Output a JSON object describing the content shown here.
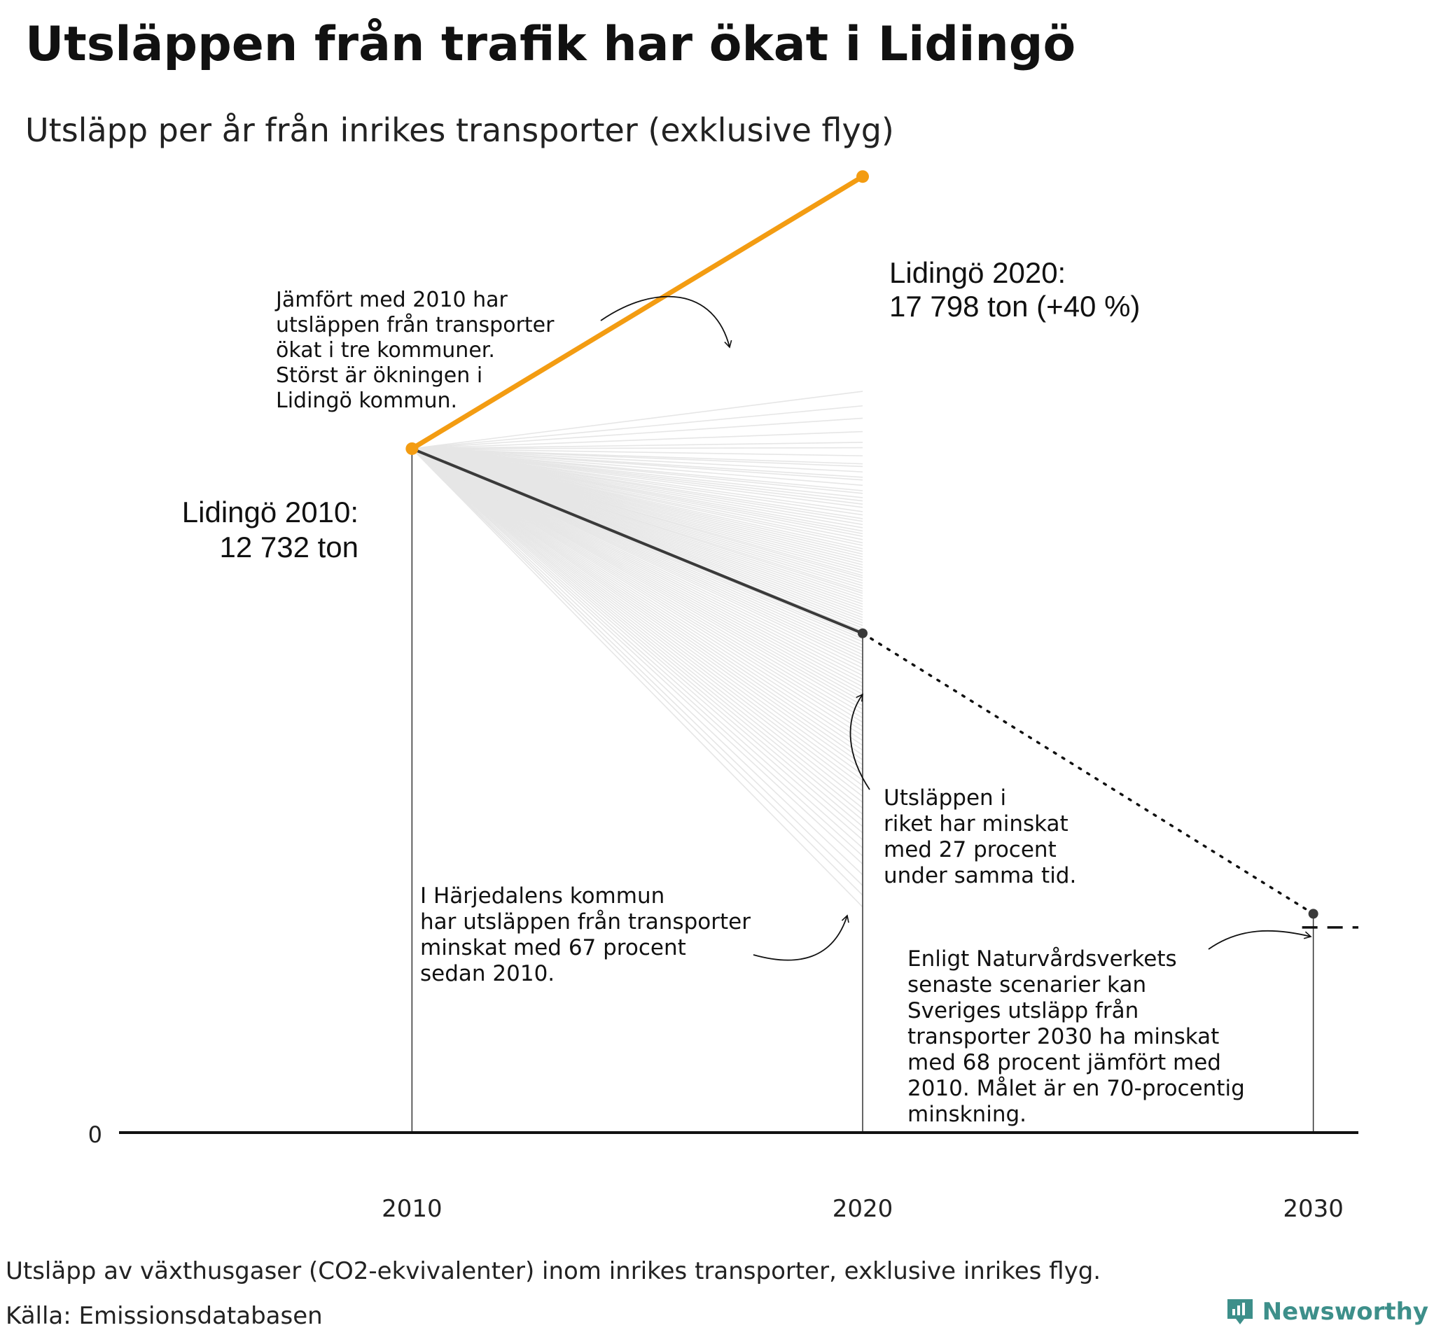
{
  "title": "Utsläppen från trafik har ökat i Lidingö",
  "subtitle": "Utsläpp per år från inrikes transporter (exklusive flyg)",
  "footnote": "Utsläpp av växthusgaser (CO2-ekvivalenter) inom inrikes transporter, exklusive inrikes flyg.",
  "source": "Källa: Emissionsdatabasen",
  "brand": "Newsworthy",
  "colors": {
    "highlight": "#f39c12",
    "national": "#3a3a3a",
    "background_lines": "#e6e6e6",
    "brand": "#3d8f8a"
  },
  "chart_data": {
    "type": "line",
    "x": [
      2010,
      2020,
      2030
    ],
    "xlim": [
      2003.5,
      2031
    ],
    "ylim": [
      0,
      19000
    ],
    "ytick_labels": [
      "0"
    ],
    "xtick_labels": [
      "2010",
      "2020",
      "2030"
    ],
    "series": [
      {
        "name": "Lidingö",
        "x": [
          2010,
          2020
        ],
        "y": [
          12732,
          17798
        ]
      },
      {
        "name": "Riket",
        "x": [
          2010,
          2020
        ],
        "y": [
          12732,
          9295
        ],
        "style": "solid"
      },
      {
        "name": "Riket",
        "x": [
          2020,
          2030
        ],
        "y": [
          9295,
          4074
        ],
        "style": "dotted"
      }
    ],
    "background_series_2020_values": [
      13800,
      13530,
      13300,
      13050,
      12850,
      12750,
      12600,
      12450,
      12400,
      12300,
      12200,
      12150,
      12050,
      11950,
      11900,
      11820,
      11760,
      11700,
      11640,
      11560,
      11500,
      11430,
      11380,
      11320,
      11260,
      11200,
      11150,
      11100,
      11040,
      10980,
      10930,
      10870,
      10820,
      10770,
      10720,
      10670,
      10620,
      10570,
      10520,
      10470,
      10420,
      10370,
      10330,
      10280,
      10230,
      10180,
      10130,
      10080,
      10040,
      9990,
      9940,
      9890,
      9840,
      9790,
      9740,
      9690,
      9640,
      9590,
      9540,
      9490,
      9440,
      9390,
      9340,
      9290,
      9240,
      9190,
      9140,
      9080,
      9020,
      8960,
      8900,
      8840,
      8780,
      8720,
      8650,
      8580,
      8510,
      8440,
      8370,
      8300,
      8230,
      8160,
      8090,
      8020,
      7950,
      7880,
      7800,
      7720,
      7640,
      7560,
      7480,
      7390,
      7300,
      7210,
      7120,
      7030,
      6940,
      6850,
      6760,
      6660,
      6560,
      6460,
      6360,
      6260,
      6150,
      6040,
      5930,
      5820,
      5700,
      5580,
      5450,
      5300,
      5150,
      5000,
      4800,
      4600,
      4420,
      4201
    ],
    "target_2030": 3820,
    "annotations": {
      "lidingo_2010_line1": "Lidingö 2010:",
      "lidingo_2010_line2": "12 732 ton",
      "lidingo_2020_line1": "Lidingö 2020:",
      "lidingo_2020_line2": "17 798 ton (+40 %)",
      "increase_note": [
        "Jämfört med 2010 har",
        "utsläppen från transporter",
        "ökat i tre kommuner.",
        "Störst är ökningen i",
        "Lidingö kommun."
      ],
      "national_note": [
        "Utsläppen i",
        "riket har minskat",
        "med 27 procent",
        "under samma tid."
      ],
      "harjedalen_note": [
        "I Härjedalens kommun",
        "har utsläppen från transporter",
        "minskat med 67 procent",
        "sedan 2010."
      ],
      "scenario_note": [
        "Enligt Naturvårdsverkets",
        "senaste scenarier kan",
        "Sveriges utsläpp från",
        "transporter 2030 ha minskat",
        "med 68 procent jämfört med",
        "2010. Målet är en 70-procentig",
        "minskning."
      ]
    }
  }
}
